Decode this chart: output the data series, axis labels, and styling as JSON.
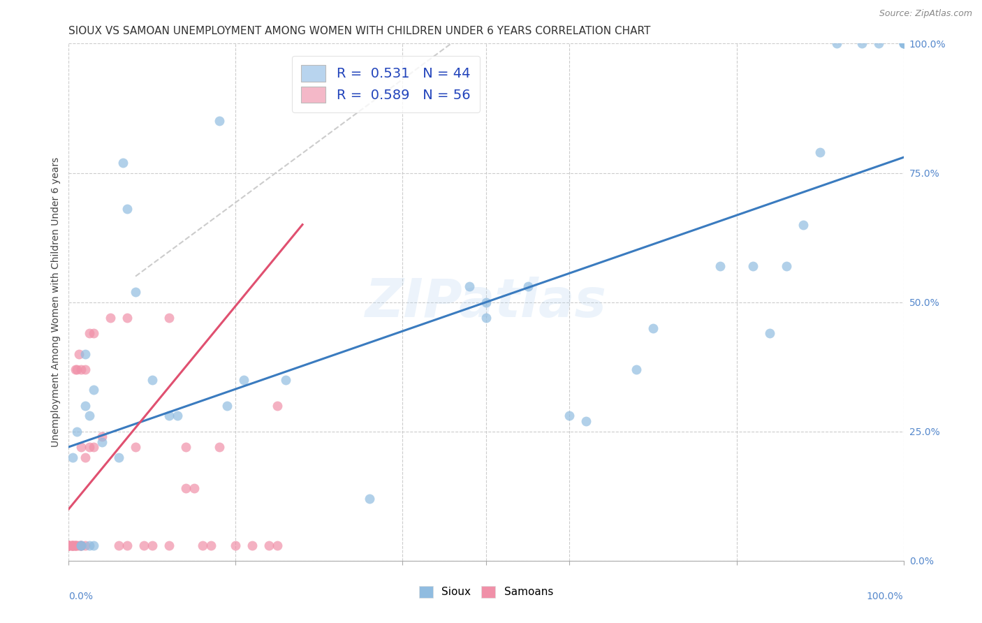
{
  "title": "SIOUX VS SAMOAN UNEMPLOYMENT AMONG WOMEN WITH CHILDREN UNDER 6 YEARS CORRELATION CHART",
  "source": "Source: ZipAtlas.com",
  "ylabel": "Unemployment Among Women with Children Under 6 years",
  "watermark": "ZIPatlas",
  "legend_label1": "R =  0.531   N = 44",
  "legend_label2": "R =  0.589   N = 56",
  "legend_color1": "#b8d4ee",
  "legend_color2": "#f4b8c8",
  "sioux_color": "#90bce0",
  "samoan_color": "#f090a8",
  "sioux_line_color": "#3a7bbf",
  "samoan_line_color": "#e05070",
  "dash_color": "#cccccc",
  "background_color": "#ffffff",
  "tick_color": "#5588cc",
  "sioux_scatter_x": [
    0.005,
    0.01,
    0.015,
    0.015,
    0.02,
    0.02,
    0.025,
    0.025,
    0.03,
    0.03,
    0.04,
    0.065,
    0.08,
    0.1,
    0.12,
    0.13,
    0.18,
    0.19,
    0.36,
    0.48,
    0.5,
    0.5,
    0.55,
    0.6,
    0.62,
    0.68,
    0.7,
    0.78,
    0.82,
    0.84,
    0.86,
    0.88,
    0.9,
    0.92,
    0.95,
    0.97,
    1.0,
    1.0,
    1.0,
    1.0,
    0.21,
    0.26,
    0.07,
    0.06
  ],
  "sioux_scatter_y": [
    0.2,
    0.25,
    0.03,
    0.03,
    0.3,
    0.4,
    0.03,
    0.28,
    0.03,
    0.33,
    0.23,
    0.77,
    0.52,
    0.35,
    0.28,
    0.28,
    0.85,
    0.3,
    0.12,
    0.53,
    0.5,
    0.47,
    0.53,
    0.28,
    0.27,
    0.37,
    0.45,
    0.57,
    0.57,
    0.44,
    0.57,
    0.65,
    0.79,
    1.0,
    1.0,
    1.0,
    1.0,
    1.0,
    1.0,
    1.0,
    0.35,
    0.35,
    0.68,
    0.2
  ],
  "samoan_scatter_x": [
    0.0,
    0.0,
    0.0,
    0.0,
    0.0,
    0.0,
    0.0,
    0.0,
    0.003,
    0.003,
    0.005,
    0.005,
    0.005,
    0.005,
    0.007,
    0.007,
    0.008,
    0.008,
    0.009,
    0.01,
    0.01,
    0.012,
    0.012,
    0.014,
    0.015,
    0.015,
    0.015,
    0.015,
    0.02,
    0.02,
    0.02,
    0.025,
    0.025,
    0.03,
    0.03,
    0.04,
    0.05,
    0.06,
    0.07,
    0.07,
    0.08,
    0.09,
    0.1,
    0.12,
    0.12,
    0.14,
    0.14,
    0.15,
    0.16,
    0.17,
    0.18,
    0.2,
    0.22,
    0.24,
    0.25,
    0.25
  ],
  "samoan_scatter_y": [
    0.03,
    0.03,
    0.03,
    0.03,
    0.03,
    0.03,
    0.03,
    0.03,
    0.03,
    0.03,
    0.03,
    0.03,
    0.03,
    0.03,
    0.03,
    0.03,
    0.03,
    0.37,
    0.03,
    0.03,
    0.37,
    0.03,
    0.4,
    0.03,
    0.03,
    0.03,
    0.22,
    0.37,
    0.03,
    0.2,
    0.37,
    0.44,
    0.22,
    0.22,
    0.44,
    0.24,
    0.47,
    0.03,
    0.03,
    0.47,
    0.22,
    0.03,
    0.03,
    0.03,
    0.47,
    0.14,
    0.22,
    0.14,
    0.03,
    0.03,
    0.22,
    0.03,
    0.03,
    0.03,
    0.03,
    0.3
  ],
  "sioux_trend": [
    0.0,
    1.0,
    0.22,
    0.78
  ],
  "samoan_solid": [
    0.0,
    0.28,
    0.1,
    0.65
  ],
  "samoan_dash": [
    0.08,
    0.5,
    0.55,
    1.05
  ],
  "xlim": [
    0,
    1
  ],
  "ylim": [
    0,
    1
  ],
  "ytick_values": [
    0.0,
    0.25,
    0.5,
    0.75,
    1.0
  ],
  "ytick_labels": [
    "0.0%",
    "25.0%",
    "50.0%",
    "75.0%",
    "100.0%"
  ],
  "title_fontsize": 11,
  "source_fontsize": 9,
  "ylabel_fontsize": 10,
  "tick_fontsize": 10,
  "legend_fontsize": 14
}
